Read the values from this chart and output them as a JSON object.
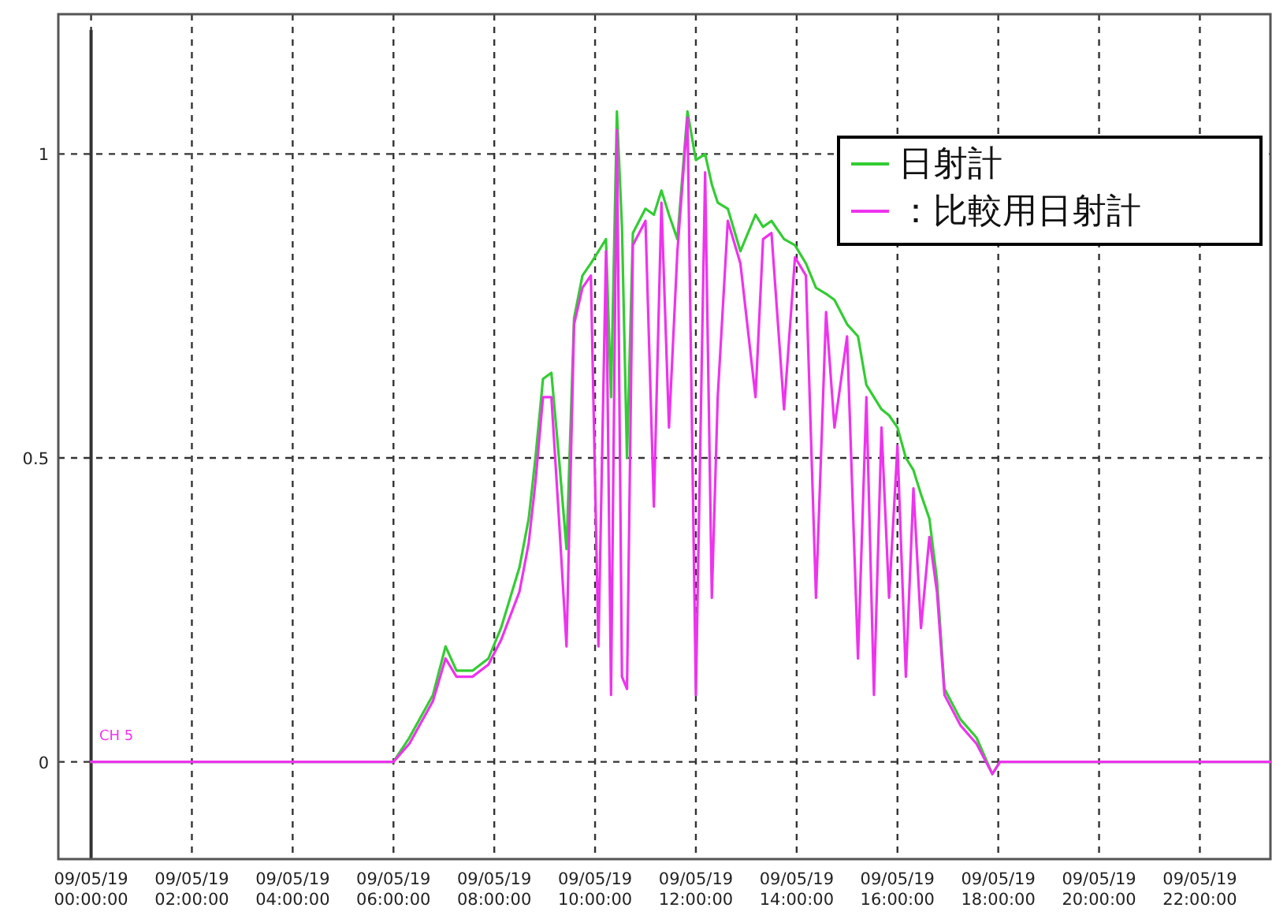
{
  "chart_data": {
    "type": "line",
    "xlim": [
      "--05-18T23:21",
      "--05-19T23:24"
    ],
    "ylim": [
      -0.16,
      1.23
    ],
    "xticks": [
      {
        "value": "--05-19T00:00",
        "label": "09/05/19\n00:00:00"
      },
      {
        "value": "--05-19T02:00",
        "label": "09/05/19\n02:00:00"
      },
      {
        "value": "--05-19T04:00",
        "label": "09/05/19\n04:00:00"
      },
      {
        "value": "--05-19T06:00",
        "label": "09/05/19\n06:00:00"
      },
      {
        "value": "--05-19T08:00",
        "label": "09/05/19\n08:00:00"
      },
      {
        "value": "--05-19T10:00",
        "label": "09/05/19\n10:00:00"
      },
      {
        "value": "--05-19T12:00",
        "label": "09/05/19\n12:00:00"
      },
      {
        "value": "--05-19T14:00",
        "label": "09/05/19\n14:00:00"
      },
      {
        "value": "--05-19T16:00",
        "label": "09/05/19\n16:00:00"
      },
      {
        "value": "--05-19T18:00",
        "label": "09/05/19\n18:00:00"
      },
      {
        "value": "--05-19T20:00",
        "label": "09/05/19\n20:00:00"
      },
      {
        "value": "--05-19T22:00",
        "label": "09/05/19\n22:00:00"
      }
    ],
    "yticks": [
      0,
      0.5,
      1
    ],
    "grid": true,
    "legend": "top right",
    "line_style": "solid",
    "marker": "none",
    "ref_lines": [
      {
        "axis": "x",
        "value": "--05-19T00:00",
        "color": "#333333",
        "line_style": "solid"
      }
    ],
    "annotations": [
      "CH 5"
    ],
    "x": [
      "--05-19T00:00",
      "--05-19T06:00",
      "--05-19T06:19",
      "--05-19T06:47",
      "--05-19T07:02",
      "--05-19T07:15",
      "--05-19T07:34",
      "--05-19T07:53",
      "--05-19T08:08",
      "--05-19T08:30",
      "--05-19T08:41",
      "--05-19T08:49",
      "--05-19T08:58",
      "--05-19T09:08",
      "--05-19T09:17",
      "--05-19T09:26",
      "--05-19T09:35",
      "--05-19T09:45",
      "--05-19T09:55",
      "--05-19T10:04",
      "--05-19T10:13",
      "--05-19T10:19",
      "--05-19T10:26",
      "--05-19T10:32",
      "--05-19T10:38",
      "--05-19T10:45",
      "--05-19T11:00",
      "--05-19T11:10",
      "--05-19T11:19",
      "--05-19T11:28",
      "--05-19T11:38",
      "--05-19T11:50",
      "--05-19T12:00",
      "--05-19T12:11",
      "--05-19T12:19",
      "--05-19T12:26",
      "--05-19T12:38",
      "--05-19T12:53",
      "--05-19T13:11",
      "--05-19T13:20",
      "--05-19T13:30",
      "--05-19T13:45",
      "--05-19T13:58",
      "--05-19T14:11",
      "--05-19T14:23",
      "--05-19T14:35",
      "--05-19T14:45",
      "--05-19T15:00",
      "--05-19T15:13",
      "--05-19T15:23",
      "--05-19T15:32",
      "--05-19T15:41",
      "--05-19T15:50",
      "--05-19T16:00",
      "--05-19T16:10",
      "--05-19T16:19",
      "--05-19T16:28",
      "--05-19T16:38",
      "--05-19T16:47",
      "--05-19T16:56",
      "--05-19T17:15",
      "--05-19T17:34",
      "--05-19T17:53",
      "--05-19T18:02",
      "--05-19T23:24"
    ],
    "series": [
      {
        "name": "日射計",
        "color": "#33cc33",
        "values": [
          0,
          0,
          0.04,
          0.11,
          0.19,
          0.15,
          0.15,
          0.17,
          0.22,
          0.32,
          0.4,
          0.5,
          0.63,
          0.64,
          0.5,
          0.35,
          0.73,
          0.8,
          0.82,
          0.84,
          0.86,
          0.6,
          1.07,
          0.88,
          0.5,
          0.87,
          0.91,
          0.9,
          0.94,
          0.9,
          0.86,
          1.07,
          0.99,
          1.0,
          0.95,
          0.92,
          0.91,
          0.84,
          0.9,
          0.88,
          0.89,
          0.86,
          0.85,
          0.82,
          0.78,
          0.77,
          0.76,
          0.72,
          0.7,
          0.62,
          0.6,
          0.58,
          0.57,
          0.55,
          0.5,
          0.48,
          0.44,
          0.4,
          0.3,
          0.12,
          0.07,
          0.04,
          -0.02,
          0,
          0
        ]
      },
      {
        "name": "：比較用日射計",
        "color": "#ee33ee",
        "values": [
          0,
          0,
          0.03,
          0.1,
          0.17,
          0.14,
          0.14,
          0.16,
          0.2,
          0.28,
          0.36,
          0.46,
          0.6,
          0.6,
          0.4,
          0.19,
          0.72,
          0.78,
          0.8,
          0.19,
          0.84,
          0.11,
          1.04,
          0.14,
          0.12,
          0.85,
          0.89,
          0.42,
          0.92,
          0.55,
          0.84,
          1.06,
          0.11,
          0.97,
          0.27,
          0.6,
          0.89,
          0.82,
          0.6,
          0.86,
          0.87,
          0.58,
          0.83,
          0.8,
          0.27,
          0.74,
          0.55,
          0.7,
          0.17,
          0.6,
          0.11,
          0.55,
          0.27,
          0.52,
          0.14,
          0.45,
          0.22,
          0.37,
          0.28,
          0.11,
          0.06,
          0.03,
          -0.02,
          0,
          0
        ]
      }
    ]
  }
}
